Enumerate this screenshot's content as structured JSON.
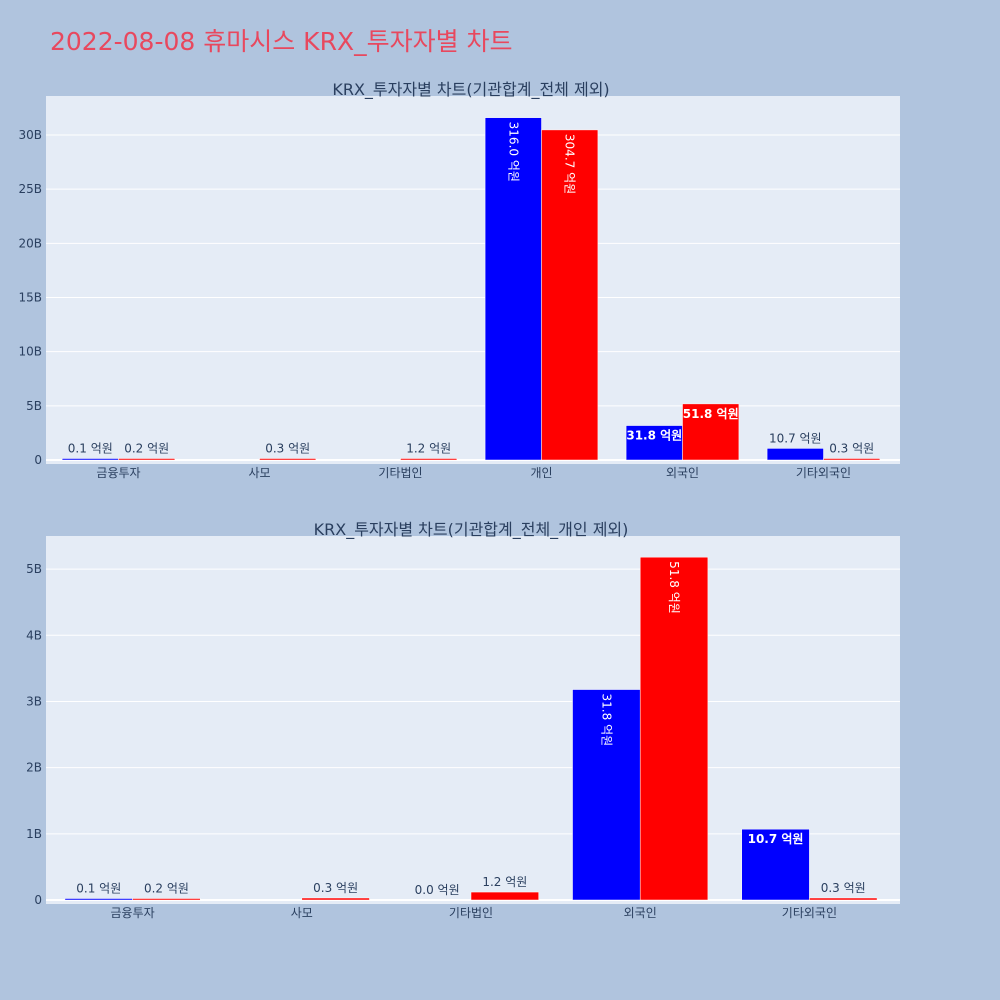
{
  "title": "2022-08-08 휴마시스 KRX_투자자별 차트",
  "colors": {
    "background": "#b0c4de",
    "plot_bg": "#e5ecf6",
    "title": "#e8485e",
    "series_a": "#0000ff",
    "series_b": "#ff0000",
    "text": "#2a3f5f"
  },
  "chart_data": [
    {
      "type": "bar",
      "title": "KRX_투자자별 차트(기관합계_전체 제외)",
      "categories": [
        "금융투자",
        "사모",
        "기타법인",
        "개인",
        "외국인",
        "기타외국인"
      ],
      "series": [
        {
          "values": [
            10000000,
            0,
            0,
            31600000000,
            3180000000,
            1070000000
          ],
          "labels": [
            "0.1 억원",
            "",
            "",
            "316.0 억원",
            "31.8 억원",
            "10.7 억원"
          ]
        },
        {
          "values": [
            20000000,
            30000000,
            120000000,
            30470000000,
            5180000000,
            30000000
          ],
          "labels": [
            "0.2 억원",
            "0.3 억원",
            "1.2 억원",
            "304.7 억원",
            "51.8 억원",
            "0.3 억원"
          ]
        }
      ],
      "yticks": [
        "0",
        "5B",
        "10B",
        "15B",
        "20B",
        "25B",
        "30B"
      ],
      "ylim": [
        0,
        33600000000
      ],
      "grid": true
    },
    {
      "type": "bar",
      "title": "KRX_투자자별 차트(기관합계_전체_개인 제외)",
      "categories": [
        "금융투자",
        "사모",
        "기타법인",
        "외국인",
        "기타외국인"
      ],
      "series": [
        {
          "values": [
            10000000,
            0,
            0,
            3180000000,
            1070000000
          ],
          "labels": [
            "0.1 억원",
            "",
            "0.0 억원",
            "31.8 억원",
            "10.7 억원"
          ]
        },
        {
          "values": [
            20000000,
            30000000,
            120000000,
            5180000000,
            30000000
          ],
          "labels": [
            "0.2 억원",
            "0.3 억원",
            "1.2 억원",
            "51.8 억원",
            "0.3 억원"
          ]
        }
      ],
      "yticks": [
        "0",
        "1B",
        "2B",
        "3B",
        "4B",
        "5B"
      ],
      "ylim": [
        0,
        5500000000
      ],
      "grid": true
    }
  ]
}
